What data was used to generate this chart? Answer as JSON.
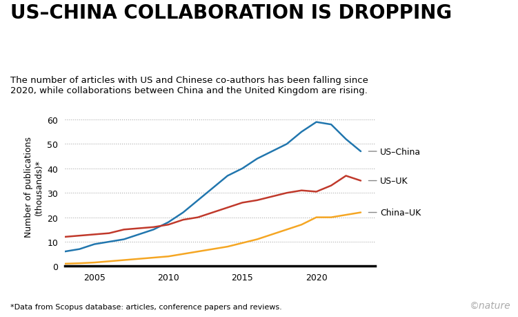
{
  "title": "US–CHINA COLLABORATION IS DROPPING",
  "subtitle": "The number of articles with US and Chinese co-authors has been falling since\n2020, while collaborations between China and the United Kingdom are rising.",
  "footnote": "*Data from Scopus database: articles, conference papers and reviews.",
  "ylabel": "Number of publications\n(thousands)*",
  "years": [
    2003,
    2004,
    2005,
    2006,
    2007,
    2008,
    2009,
    2010,
    2011,
    2012,
    2013,
    2014,
    2015,
    2016,
    2017,
    2018,
    2019,
    2020,
    2021,
    2022,
    2023
  ],
  "us_china": [
    6,
    7,
    9,
    10,
    11,
    13,
    15,
    18,
    22,
    27,
    32,
    37,
    40,
    44,
    47,
    50,
    55,
    59,
    58,
    52,
    47
  ],
  "us_uk": [
    12,
    12.5,
    13,
    13.5,
    15,
    15.5,
    16,
    17,
    19,
    20,
    22,
    24,
    26,
    27,
    28.5,
    30,
    31,
    30.5,
    33,
    37,
    35
  ],
  "china_uk": [
    1,
    1.2,
    1.5,
    2,
    2.5,
    3,
    3.5,
    4,
    5,
    6,
    7,
    8,
    9.5,
    11,
    13,
    15,
    17,
    20,
    20,
    21,
    22
  ],
  "color_us_china": "#2176AE",
  "color_us_uk": "#C0392B",
  "color_china_uk": "#F5A623",
  "label_color": "#888888",
  "ylim": [
    0,
    65
  ],
  "yticks": [
    0,
    10,
    20,
    30,
    40,
    50,
    60
  ],
  "xlim": [
    2003,
    2024
  ],
  "xticks": [
    2005,
    2010,
    2015,
    2020
  ],
  "nature_color": "#aaaaaa",
  "background_color": "#ffffff",
  "grid_color": "#aaaaaa",
  "title_fontsize": 20,
  "subtitle_fontsize": 9.5,
  "axis_fontsize": 9,
  "footnote_fontsize": 8
}
